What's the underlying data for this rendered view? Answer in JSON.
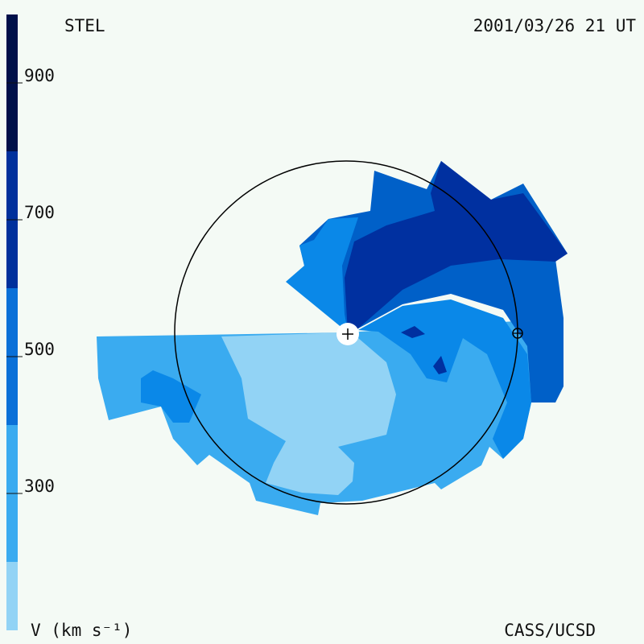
{
  "header": {
    "left": "STEL",
    "right": "2001/03/26 21 UT"
  },
  "colorbar": {
    "label": "V (km s⁻¹)",
    "range": [
      100,
      1000
    ],
    "ticks": [
      300,
      500,
      700,
      900
    ],
    "bands": [
      {
        "from": 100,
        "to": 200,
        "color": "#92d3f5"
      },
      {
        "from": 200,
        "to": 400,
        "color": "#3aabf0"
      },
      {
        "from": 400,
        "to": 600,
        "color": "#0a70d8"
      },
      {
        "from": 600,
        "to": 800,
        "color": "#00309c"
      },
      {
        "from": 800,
        "to": 1000,
        "color": "#00104a"
      }
    ]
  },
  "footer": "CASS/UCSD"
}
